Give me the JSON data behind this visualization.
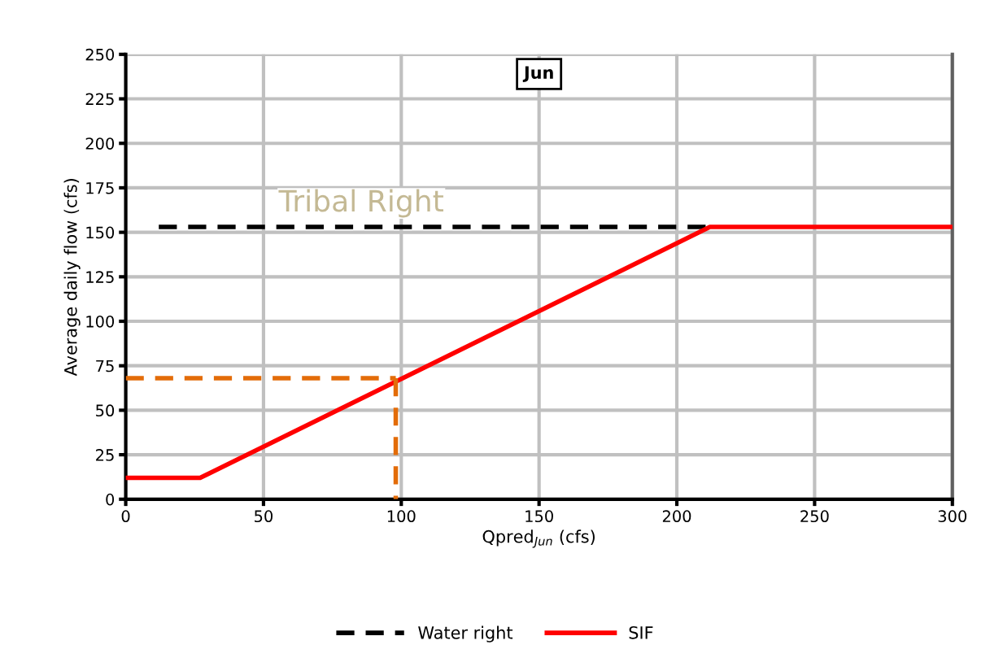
{
  "chart_data": {
    "type": "line",
    "title": "Jun",
    "xlabel": "Qpred$_{Jun}$ (cfs)",
    "ylabel": "Average daily flow (cfs)",
    "xlim": [
      0,
      300
    ],
    "xticks": [
      0,
      50,
      100,
      150,
      200,
      250,
      300
    ],
    "ylim": [
      0,
      250
    ],
    "yticks": [
      0,
      25,
      50,
      75,
      100,
      125,
      150,
      175,
      200,
      225,
      250
    ],
    "grid": true,
    "legend": "bottom",
    "marker": "none",
    "annotations": [
      "Tribal Right"
    ],
    "series": [
      {
        "name": "Water right",
        "color": "#000000",
        "line_style": "dashed",
        "x": [
          12,
          212
        ],
        "values": [
          153,
          153
        ]
      },
      {
        "name": "SIF",
        "color": "#ff0000",
        "line_style": "solid",
        "x": [
          0,
          27,
          212,
          300
        ],
        "values": [
          12,
          12,
          153,
          153
        ]
      },
      {
        "color": "#e36c09",
        "line_style": "dashed",
        "x": [
          0,
          98
        ],
        "values": [
          68,
          68
        ]
      },
      {
        "color": "#e36c09",
        "line_style": "dashed",
        "x": [
          98,
          98
        ],
        "values": [
          68,
          0
        ]
      }
    ]
  }
}
